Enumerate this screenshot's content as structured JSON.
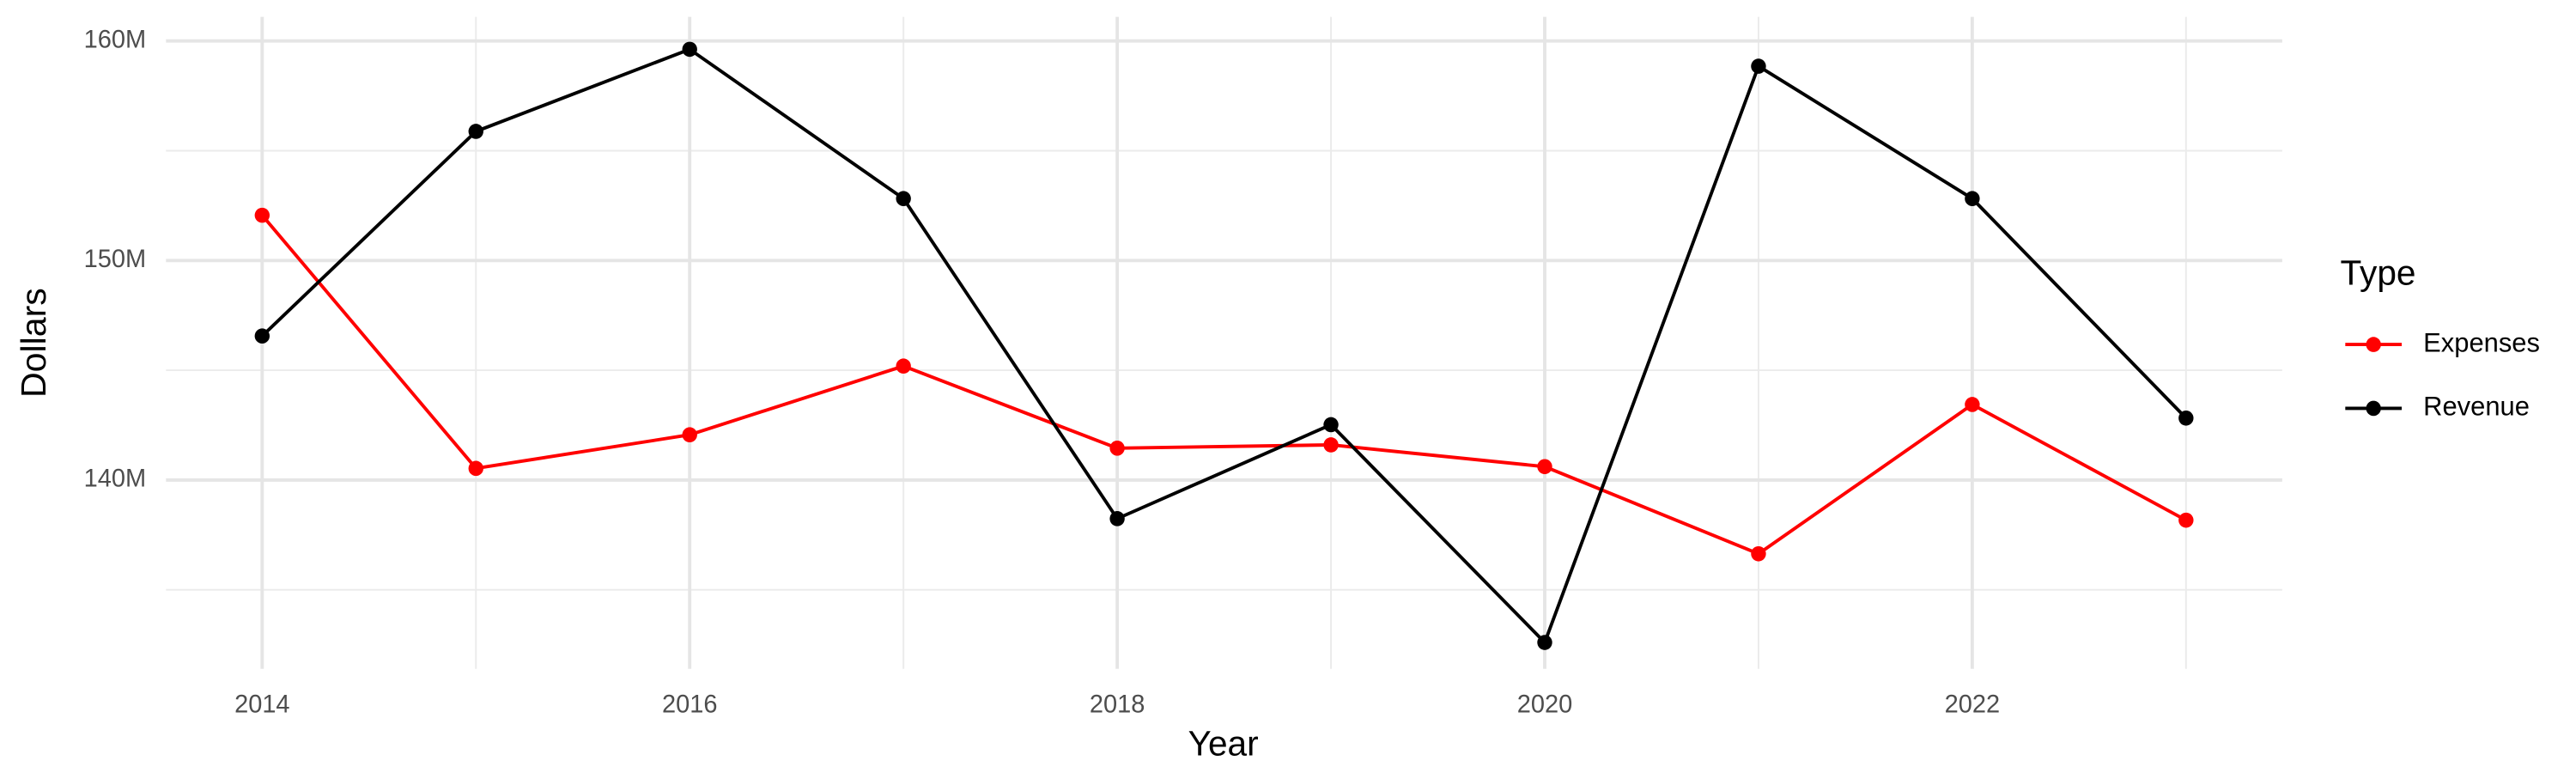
{
  "chart_data": {
    "type": "line",
    "x_label": "Year",
    "y_label": "Dollars",
    "x": [
      2014,
      2015,
      2016,
      2017,
      2018,
      2019,
      2020,
      2021,
      2022,
      2023
    ],
    "series": [
      {
        "name": "Expenses",
        "color": "#ff0000",
        "values": [
          152060000,
          140530000,
          142060000,
          145190000,
          141450000,
          141600000,
          140610000,
          136640000,
          143440000,
          138170000
        ]
      },
      {
        "name": "Revenue",
        "color": "#000000",
        "values": [
          146560000,
          155880000,
          159620000,
          152820000,
          138240000,
          142520000,
          132600000,
          158850000,
          152820000,
          142820000
        ]
      }
    ],
    "xlim": [
      2013.55,
      2023.45
    ],
    "xticks": [
      2014,
      2016,
      2018,
      2020,
      2022
    ],
    "ylim": [
      131400000,
      161100000
    ],
    "yticks": [
      {
        "value": 140000000,
        "label": "140M"
      },
      {
        "value": 150000000,
        "label": "150M"
      },
      {
        "value": 160000000,
        "label": "160M"
      }
    ],
    "grid": true,
    "legend_title": "Type",
    "legend_position": "right"
  }
}
